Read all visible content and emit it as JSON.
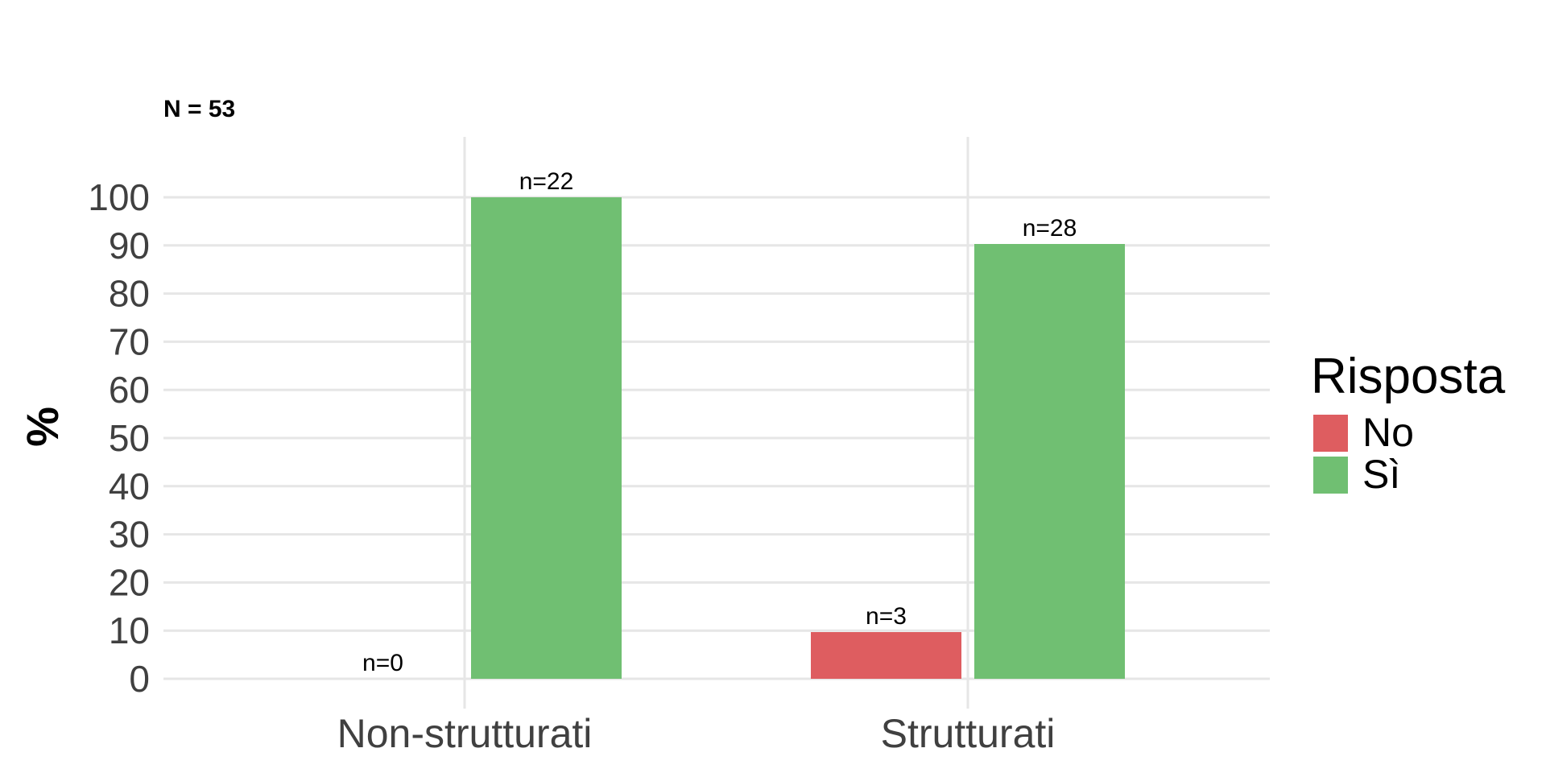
{
  "chart_data": {
    "type": "bar",
    "subtitle": "N = 53",
    "title": "",
    "xlabel": "",
    "ylabel": "%",
    "categories": [
      "Non-strutturati",
      "Strutturati"
    ],
    "series": [
      {
        "name": "No",
        "color": "#de5d60",
        "values": [
          0,
          9.7
        ],
        "labels": [
          "n=0",
          "n=3"
        ]
      },
      {
        "name": "Sì",
        "color": "#70bf72",
        "values": [
          100,
          90.3
        ],
        "labels": [
          "n=22",
          "n=28"
        ]
      }
    ],
    "yticks": [
      0,
      10,
      20,
      30,
      40,
      50,
      60,
      70,
      80,
      90,
      100
    ],
    "ylim": [
      0,
      100
    ],
    "grid": true,
    "legend": {
      "title": "Risposta",
      "placement": "right"
    }
  }
}
